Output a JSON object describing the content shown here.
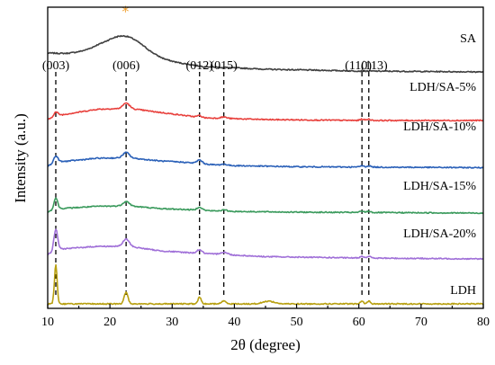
{
  "chart_data": {
    "type": "line",
    "xlabel": "2θ (degree)",
    "ylabel": "Intensity (a.u.)",
    "xlim": [
      10,
      80
    ],
    "x_ticks": [
      10,
      20,
      30,
      40,
      50,
      60,
      70,
      80
    ],
    "y_tick_labels": "none",
    "grid": false,
    "peak_lines": [
      {
        "x": 11.3,
        "label": "(003)"
      },
      {
        "x": 22.6,
        "label": "(006)"
      },
      {
        "x": 34.4,
        "label": "(012)"
      },
      {
        "x": 38.3,
        "label": "(015)"
      },
      {
        "x": 60.5,
        "label": "(110)"
      },
      {
        "x": 61.6,
        "label": "(113)"
      }
    ],
    "marker": {
      "symbol": "*",
      "x": 22.5,
      "series": "SA",
      "color": "#f0a030"
    },
    "series": [
      {
        "name": "SA",
        "color": "#404040",
        "offset": 5.0,
        "background": [
          [
            10,
            0.58
          ],
          [
            13,
            0.57
          ],
          [
            18,
            0.63
          ],
          [
            28,
            0.42
          ],
          [
            35,
            0.28
          ],
          [
            45,
            0.22
          ],
          [
            60,
            0.18
          ],
          [
            80,
            0.16
          ]
        ],
        "peaks": [
          [
            22.5,
            0.42,
            3.0
          ]
        ]
      },
      {
        "name": "LDH/SA-5%",
        "color": "#e8403c",
        "offset": 4.0,
        "background": [
          [
            10,
            0.1
          ],
          [
            12,
            0.2
          ],
          [
            18,
            0.33
          ],
          [
            23,
            0.35
          ],
          [
            28,
            0.26
          ],
          [
            35,
            0.14
          ],
          [
            45,
            0.1
          ],
          [
            60,
            0.08
          ],
          [
            80,
            0.08
          ]
        ],
        "peaks": [
          [
            11.3,
            0.1,
            0.35
          ],
          [
            22.6,
            0.12,
            0.5
          ],
          [
            34.4,
            0.04,
            0.35
          ],
          [
            38.3,
            0.03,
            0.5
          ],
          [
            60.5,
            0.03,
            0.3
          ],
          [
            61.6,
            0.03,
            0.3
          ]
        ]
      },
      {
        "name": "LDH/SA-10%",
        "color": "#2a60b8",
        "offset": 3.0,
        "background": [
          [
            10,
            0.07
          ],
          [
            12,
            0.16
          ],
          [
            18,
            0.24
          ],
          [
            23,
            0.25
          ],
          [
            28,
            0.18
          ],
          [
            32,
            0.15
          ],
          [
            38,
            0.08
          ],
          [
            50,
            0.05
          ],
          [
            80,
            0.03
          ]
        ],
        "peaks": [
          [
            11.3,
            0.16,
            0.35
          ],
          [
            22.6,
            0.12,
            0.5
          ],
          [
            34.4,
            0.08,
            0.4
          ],
          [
            38.3,
            0.03,
            0.5
          ],
          [
            60.5,
            0.03,
            0.3
          ],
          [
            61.6,
            0.03,
            0.3
          ]
        ]
      },
      {
        "name": "LDH/SA-15%",
        "color": "#3a9a5c",
        "offset": 2.0,
        "background": [
          [
            10,
            0.05
          ],
          [
            12,
            0.12
          ],
          [
            18,
            0.17
          ],
          [
            23,
            0.18
          ],
          [
            28,
            0.12
          ],
          [
            32,
            0.1
          ],
          [
            38,
            0.06
          ],
          [
            50,
            0.04
          ],
          [
            80,
            0.02
          ]
        ],
        "peaks": [
          [
            11.3,
            0.26,
            0.3
          ],
          [
            22.6,
            0.1,
            0.5
          ],
          [
            34.4,
            0.07,
            0.4
          ],
          [
            38.3,
            0.03,
            0.5
          ],
          [
            60.5,
            0.03,
            0.3
          ],
          [
            61.6,
            0.03,
            0.3
          ]
        ]
      },
      {
        "name": "LDH/SA-20%",
        "color": "#a070d8",
        "offset": 1.0,
        "background": [
          [
            10,
            0.1
          ],
          [
            12,
            0.22
          ],
          [
            18,
            0.28
          ],
          [
            23,
            0.28
          ],
          [
            28,
            0.18
          ],
          [
            35,
            0.12
          ],
          [
            45,
            0.05
          ],
          [
            60,
            0.02
          ],
          [
            80,
            0.0
          ]
        ],
        "peaks": [
          [
            11.3,
            0.48,
            0.3
          ],
          [
            22.6,
            0.16,
            0.5
          ],
          [
            34.4,
            0.08,
            0.4
          ],
          [
            38.3,
            0.05,
            0.6
          ],
          [
            60.5,
            0.04,
            0.3
          ],
          [
            61.6,
            0.04,
            0.3
          ]
        ]
      },
      {
        "name": "LDH",
        "color": "#b8a010",
        "offset": 0.0,
        "background": [
          [
            10,
            0.0
          ],
          [
            80,
            0.0
          ]
        ],
        "peaks": [
          [
            11.3,
            0.86,
            0.22
          ],
          [
            22.6,
            0.26,
            0.3
          ],
          [
            34.4,
            0.15,
            0.25
          ],
          [
            38.3,
            0.06,
            0.4
          ],
          [
            45.5,
            0.06,
            0.9
          ],
          [
            60.5,
            0.06,
            0.25
          ],
          [
            61.6,
            0.06,
            0.25
          ]
        ]
      }
    ]
  }
}
